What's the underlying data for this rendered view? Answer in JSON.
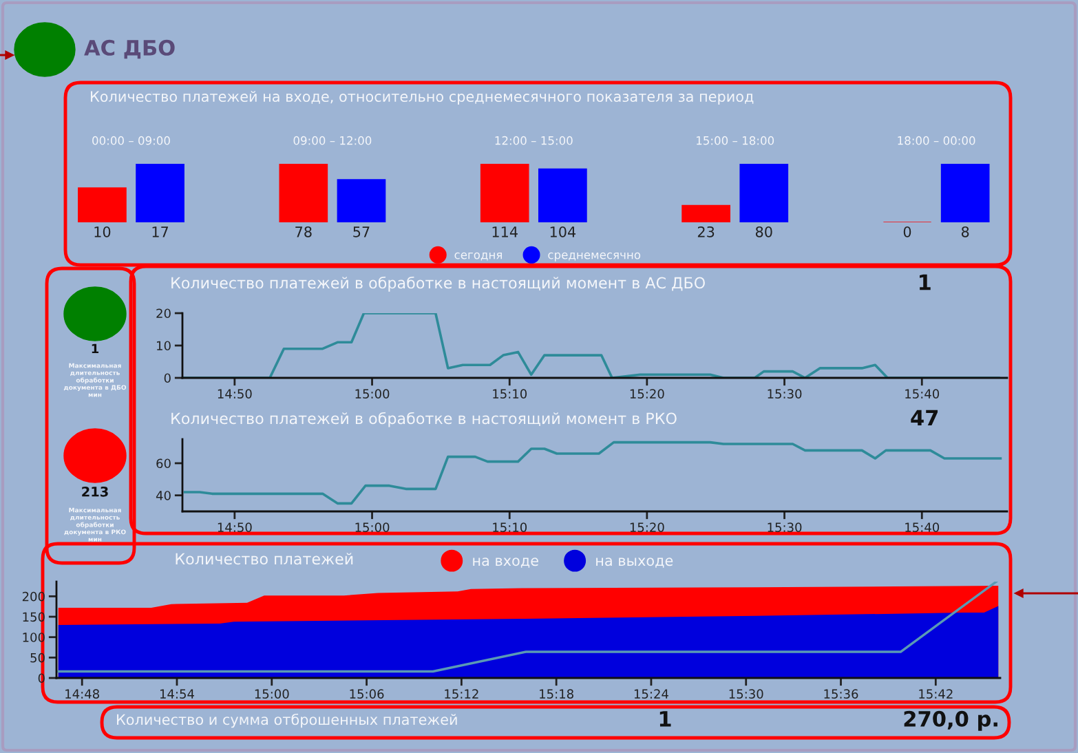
{
  "chart_data": [
    {
      "type": "other",
      "title": "АС ДБО",
      "annotations": [
        "Количество платежей на входе, относительно среднемесячного показателя за период",
        "1",
        "Максимальная\nдлительность\nобработки\nдокумента в ДБО\nмин",
        "213",
        "Максимальная\nдлительность\nобработки\nдокумента в РКО\nмин",
        "Количество и сумма отброшенных платежей",
        "1",
        "270,0 р."
      ]
    },
    {
      "type": "bar",
      "title": "00:00 – 09:00",
      "categories": [
        null
      ],
      "data_labels": true,
      "series": [
        {
          "color": "#ff0000",
          "values": [
            10
          ]
        },
        {
          "color": "#0000ff",
          "values": [
            17
          ]
        }
      ]
    },
    {
      "type": "bar",
      "title": "09:00 – 12:00",
      "categories": [
        null
      ],
      "data_labels": true,
      "series": [
        {
          "color": "#ff0000",
          "values": [
            78
          ]
        },
        {
          "color": "#0000ff",
          "values": [
            57
          ]
        }
      ]
    },
    {
      "type": "bar",
      "title": "12:00 – 15:00",
      "categories": [
        null
      ],
      "data_labels": true,
      "legend": "bottom",
      "series": [
        {
          "name": "сегодня",
          "color": "#ff0000",
          "values": [
            114
          ]
        },
        {
          "name": "среднемесячно",
          "color": "#0000ff",
          "values": [
            104
          ]
        }
      ]
    },
    {
      "type": "bar",
      "title": "15:00 – 18:00",
      "categories": [
        null
      ],
      "data_labels": true,
      "series": [
        {
          "color": "#ff0000",
          "values": [
            23
          ]
        },
        {
          "color": "#0000ff",
          "values": [
            80
          ]
        }
      ]
    },
    {
      "type": "bar",
      "title": "18:00 – 00:00",
      "categories": [
        null
      ],
      "data_labels": true,
      "series": [
        {
          "color": "#ff0000",
          "values": [
            0
          ]
        },
        {
          "color": "#0000ff",
          "values": [
            8
          ]
        }
      ]
    },
    {
      "type": "line",
      "title": "Количество платежей в обработке в настоящий момент в АС ДБО",
      "annotations": [
        "1"
      ],
      "x": [
        14.77,
        14.876,
        14.893,
        14.94,
        14.958,
        14.975,
        14.99,
        15.077,
        15.092,
        15.11,
        15.143,
        15.159,
        15.177,
        15.193,
        15.209,
        15.278,
        15.291,
        15.325,
        15.41,
        15.426,
        15.464,
        15.475,
        15.51,
        15.525,
        15.543,
        15.594,
        15.61,
        15.625,
        15.76
      ],
      "series": [
        {
          "color": "#2e8b99",
          "values": [
            0,
            0,
            9,
            9,
            11,
            11,
            20,
            20,
            3,
            4,
            4,
            7,
            8,
            1,
            7,
            7,
            0,
            1,
            1,
            0,
            0,
            2,
            2,
            0,
            3,
            3,
            4,
            0,
            0
          ]
        }
      ],
      "xlim": [
        14.77,
        15.77
      ],
      "xticks": [
        {
          "value": 14.8333,
          "label": "14:50"
        },
        {
          "value": 15.0,
          "label": "15:00"
        },
        {
          "value": 15.1667,
          "label": "15:10"
        },
        {
          "value": 15.3333,
          "label": "15:20"
        },
        {
          "value": 15.5,
          "label": "15:30"
        },
        {
          "value": 15.6667,
          "label": "15:40"
        }
      ],
      "ylim": [
        0,
        20
      ],
      "yticks": [
        0,
        10,
        20
      ]
    },
    {
      "type": "line",
      "title": "Количество платежей в обработке в настоящий момент в РКО",
      "annotations": [
        "47"
      ],
      "x": [
        14.773,
        14.791,
        14.806,
        14.94,
        14.958,
        14.975,
        14.992,
        15.021,
        15.041,
        15.077,
        15.092,
        15.125,
        15.14,
        15.177,
        15.193,
        15.209,
        15.224,
        15.275,
        15.293,
        15.41,
        15.426,
        15.51,
        15.525,
        15.594,
        15.61,
        15.623,
        15.677,
        15.694,
        15.762
      ],
      "series": [
        {
          "color": "#2e8b99",
          "values": [
            42,
            42,
            41,
            41,
            35,
            35,
            46,
            46,
            44,
            44,
            64,
            64,
            61,
            61,
            69,
            69,
            66,
            66,
            73,
            73,
            72,
            72,
            68,
            68,
            63,
            68,
            68,
            63,
            63
          ]
        }
      ],
      "xlim": [
        14.77,
        15.77
      ],
      "xticks": [
        {
          "value": 14.8333,
          "label": "14:50"
        },
        {
          "value": 15.0,
          "label": "15:00"
        },
        {
          "value": 15.1667,
          "label": "15:10"
        },
        {
          "value": 15.3333,
          "label": "15:20"
        },
        {
          "value": 15.5,
          "label": "15:30"
        },
        {
          "value": 15.6667,
          "label": "15:40"
        }
      ],
      "ylim": [
        30,
        75
      ],
      "yticks": [
        40,
        60
      ]
    },
    {
      "type": "area",
      "title": "Количество платежей",
      "legend": "top",
      "series": [
        {
          "name": "на входе",
          "color": "#ff0000",
          "x": [
            14.775,
            14.873,
            14.894,
            14.974,
            14.992,
            15.076,
            15.112,
            15.196,
            15.21,
            15.264,
            15.511,
            15.657,
            15.766
          ],
          "values": [
            172,
            172,
            181,
            184,
            202,
            202,
            208,
            212,
            218,
            220,
            222,
            224,
            226
          ]
        },
        {
          "name": "на выходе",
          "color": "#0000dd",
          "x": [
            14.775,
            14.945,
            14.96,
            15.264,
            15.511,
            15.729,
            15.751,
            15.766
          ],
          "values": [
            130,
            133,
            138,
            145,
            152,
            160,
            160,
            176
          ]
        },
        {
          "type": "line",
          "color": "#5a9ab5",
          "x": [
            14.775,
            15.17,
            15.268,
            15.663,
            15.764
          ],
          "values": [
            16,
            16,
            64,
            64,
            236
          ]
        }
      ],
      "xlim": [
        14.773,
        15.768
      ],
      "xticks": [
        {
          "value": 14.8,
          "label": "14:48"
        },
        {
          "value": 14.9,
          "label": "14:54"
        },
        {
          "value": 15.0,
          "label": "15:00"
        },
        {
          "value": 15.1,
          "label": "15:06"
        },
        {
          "value": 15.2,
          "label": "15:12"
        },
        {
          "value": 15.3,
          "label": "15:18"
        },
        {
          "value": 15.4,
          "label": "15:24"
        },
        {
          "value": 15.5,
          "label": "15:30"
        },
        {
          "value": 15.6,
          "label": "15:36"
        },
        {
          "value": 15.7,
          "label": "15:42"
        }
      ],
      "ylim": [
        0,
        236
      ],
      "yticks": [
        0,
        50,
        100,
        150,
        200
      ]
    }
  ]
}
